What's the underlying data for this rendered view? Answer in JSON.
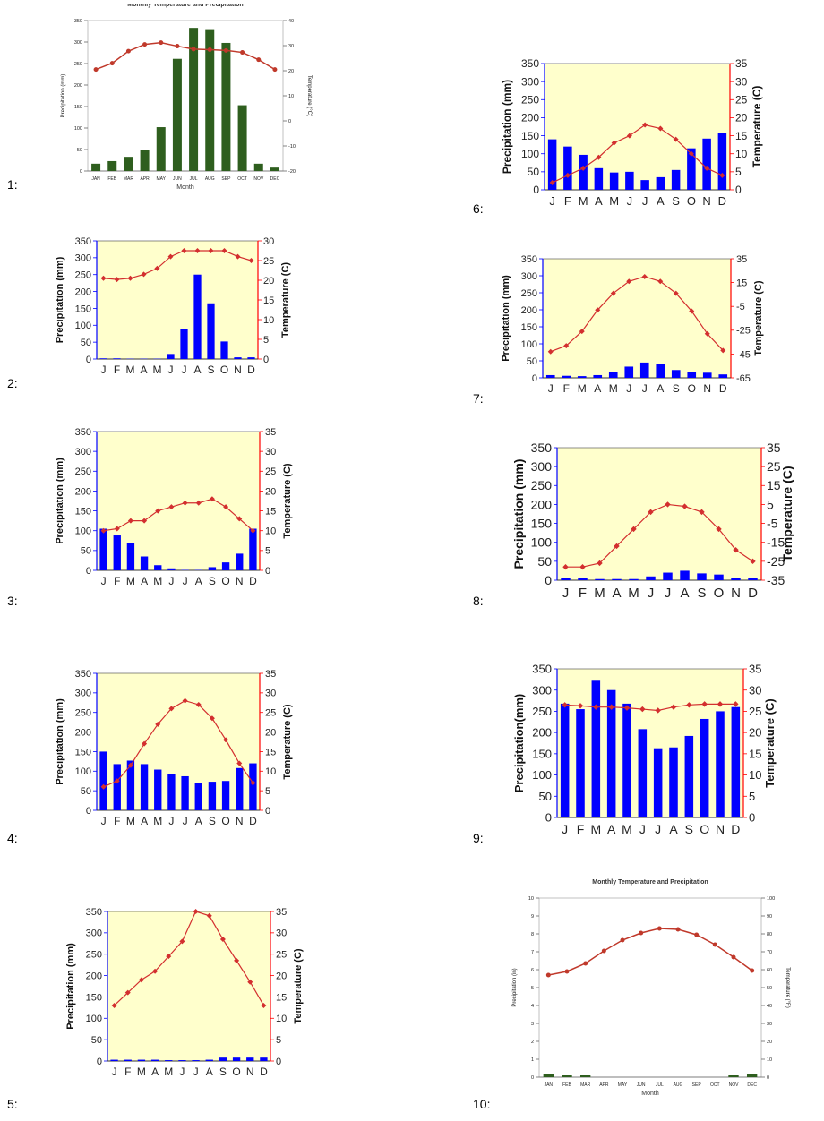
{
  "panel_labels": [
    "1:",
    "2:",
    "3:",
    "4:",
    "5:",
    "6:",
    "7:",
    "8:",
    "9:",
    "10:"
  ],
  "colors": {
    "green_bar": "#2e5e1e",
    "blue_bar": "#0000ff",
    "red_line": "#c0392b",
    "temp_marker": "#d32f2f",
    "yellow_bg": "#ffffcc",
    "blue_axis": "#0000ff",
    "red_axis": "#ff0000"
  },
  "chart_data": [
    {
      "type": "bar",
      "style": "climate-green",
      "title": "Monthly Temperature and Precipitation",
      "xlabel": "Month",
      "ylabel": "Precipitation (mm)",
      "y2label": "Temperature (°C)",
      "categories": [
        "JAN",
        "FEB",
        "MAR",
        "APR",
        "MAY",
        "JUN",
        "JUL",
        "AUG",
        "SEP",
        "OCT",
        "NOV",
        "DEC"
      ],
      "ylim": [
        0,
        350
      ],
      "yticks": [
        0,
        50,
        100,
        150,
        200,
        250,
        300,
        350
      ],
      "y2lim": [
        -20,
        40
      ],
      "y2ticks": [
        -20,
        -10,
        0,
        10,
        20,
        30,
        40
      ],
      "series": [
        {
          "values": [
            17,
            23,
            33,
            48,
            102,
            261,
            333,
            330,
            298,
            153,
            17,
            8
          ]
        },
        {
          "axis": "right",
          "values": [
            20.5,
            23,
            27.8,
            30.5,
            31.2,
            29.8,
            28.6,
            28.4,
            28.1,
            27.3,
            24.4,
            20.5
          ]
        }
      ]
    },
    {
      "type": "bar",
      "style": "climate-yellow",
      "ylabel": "Precipitation (mm)",
      "y2label": "Temperature (C)",
      "categories": [
        "J",
        "F",
        "M",
        "A",
        "M",
        "J",
        "J",
        "A",
        "S",
        "O",
        "N",
        "D"
      ],
      "ylim": [
        0,
        350
      ],
      "yticks": [
        0,
        50,
        100,
        150,
        200,
        250,
        300,
        350
      ],
      "y2lim": [
        0,
        30
      ],
      "y2ticks": [
        0,
        5,
        10,
        15,
        20,
        25,
        30
      ],
      "series": [
        {
          "values": [
            2,
            2,
            1,
            1,
            1,
            15,
            90,
            250,
            165,
            52,
            5,
            5
          ]
        },
        {
          "axis": "right",
          "values": [
            20.5,
            20.2,
            20.5,
            21.5,
            23,
            26,
            27.5,
            27.5,
            27.5,
            27.5,
            26,
            25
          ]
        }
      ]
    },
    {
      "type": "bar",
      "style": "climate-yellow",
      "ylabel": "Precipitation (mm)",
      "y2label": "Temperature (C)",
      "categories": [
        "J",
        "F",
        "M",
        "A",
        "M",
        "J",
        "J",
        "A",
        "S",
        "O",
        "N",
        "D"
      ],
      "ylim": [
        0,
        350
      ],
      "yticks": [
        0,
        50,
        100,
        150,
        200,
        250,
        300,
        350
      ],
      "y2lim": [
        0,
        35
      ],
      "y2ticks": [
        0,
        5,
        10,
        15,
        20,
        25,
        30,
        35
      ],
      "series": [
        {
          "values": [
            105,
            88,
            70,
            35,
            13,
            5,
            1,
            1,
            8,
            20,
            42,
            105
          ]
        },
        {
          "axis": "right",
          "values": [
            10,
            10.5,
            12.5,
            12.5,
            15,
            16,
            17,
            17,
            18,
            16,
            13,
            10
          ]
        }
      ]
    },
    {
      "type": "bar",
      "style": "climate-yellow",
      "ylabel": "Precipitation (mm)",
      "y2label": "Temperature (C)",
      "categories": [
        "J",
        "F",
        "M",
        "A",
        "M",
        "J",
        "J",
        "A",
        "S",
        "O",
        "N",
        "D"
      ],
      "ylim": [
        0,
        350
      ],
      "yticks": [
        0,
        50,
        100,
        150,
        200,
        250,
        300,
        350
      ],
      "y2lim": [
        0,
        35
      ],
      "y2ticks": [
        0,
        5,
        10,
        15,
        20,
        25,
        30,
        35
      ],
      "series": [
        {
          "values": [
            150,
            118,
            127,
            118,
            104,
            93,
            87,
            70,
            73,
            75,
            108,
            120
          ]
        },
        {
          "axis": "right",
          "values": [
            6,
            7.5,
            11.5,
            17,
            22,
            26,
            28,
            27,
            23.5,
            18,
            12,
            7
          ]
        }
      ]
    },
    {
      "type": "bar",
      "style": "climate-yellow",
      "ylabel": "Precipitation (mm)",
      "y2label": "Temperature (C)",
      "categories": [
        "J",
        "F",
        "M",
        "A",
        "M",
        "J",
        "J",
        "A",
        "S",
        "O",
        "N",
        "D"
      ],
      "ylim": [
        0,
        350
      ],
      "yticks": [
        0,
        50,
        100,
        150,
        200,
        250,
        300,
        350
      ],
      "y2lim": [
        0,
        35
      ],
      "y2ticks": [
        0,
        5,
        10,
        15,
        20,
        25,
        30,
        35
      ],
      "series": [
        {
          "values": [
            3,
            3,
            3,
            3,
            2,
            2,
            2,
            3,
            8,
            8,
            8,
            8
          ]
        },
        {
          "axis": "right",
          "values": [
            13,
            16,
            19,
            21,
            24.5,
            28,
            35,
            34,
            28.5,
            23.5,
            18.5,
            13
          ]
        }
      ]
    },
    {
      "type": "bar",
      "style": "climate-yellow",
      "ylabel": "Precipitation (mm)",
      "y2label": "Temperature (C)",
      "categories": [
        "J",
        "F",
        "M",
        "A",
        "M",
        "J",
        "J",
        "A",
        "S",
        "O",
        "N",
        "D"
      ],
      "ylim": [
        0,
        350
      ],
      "yticks": [
        0,
        50,
        100,
        150,
        200,
        250,
        300,
        350
      ],
      "y2lim": [
        0,
        35
      ],
      "y2ticks": [
        0,
        5,
        10,
        15,
        20,
        25,
        30,
        35
      ],
      "series": [
        {
          "values": [
            140,
            120,
            97,
            60,
            48,
            50,
            27,
            35,
            55,
            115,
            142,
            157
          ]
        },
        {
          "axis": "right",
          "values": [
            2,
            4,
            6,
            9,
            13,
            15,
            18,
            17,
            14,
            10,
            6,
            4
          ]
        }
      ]
    },
    {
      "type": "bar",
      "style": "climate-yellow",
      "ylabel": "Precipitation (mm)",
      "y2label": "Temperature (C)",
      "categories": [
        "J",
        "F",
        "M",
        "A",
        "M",
        "J",
        "J",
        "A",
        "S",
        "O",
        "N",
        "D"
      ],
      "ylim": [
        0,
        350
      ],
      "yticks": [
        0,
        50,
        100,
        150,
        200,
        250,
        300,
        350
      ],
      "y2lim": [
        -65,
        35
      ],
      "y2ticks": [
        -65,
        -45,
        -25,
        -5,
        15,
        35
      ],
      "series": [
        {
          "values": [
            8,
            6,
            5,
            8,
            18,
            33,
            45,
            40,
            23,
            18,
            15,
            10
          ]
        },
        {
          "axis": "right",
          "values": [
            -43,
            -38,
            -26,
            -8,
            6,
            16,
            20,
            16,
            6,
            -9,
            -28,
            -42
          ]
        }
      ]
    },
    {
      "type": "bar",
      "style": "climate-yellow",
      "ylabel": "Precipitation (mm)",
      "y2label": "Temperature (C)",
      "categories": [
        "J",
        "F",
        "M",
        "A",
        "M",
        "J",
        "J",
        "A",
        "S",
        "O",
        "N",
        "D"
      ],
      "ylim": [
        0,
        350
      ],
      "yticks": [
        0,
        50,
        100,
        150,
        200,
        250,
        300,
        350
      ],
      "y2lim": [
        -35,
        35
      ],
      "y2ticks": [
        -35,
        -25,
        -15,
        -5,
        5,
        15,
        25,
        35
      ],
      "series": [
        {
          "values": [
            5,
            5,
            3,
            3,
            3,
            10,
            20,
            25,
            18,
            15,
            5,
            5
          ]
        },
        {
          "axis": "right",
          "values": [
            -28,
            -28,
            -26,
            -17,
            -8,
            1,
            5,
            4,
            1,
            -8,
            -19,
            -25
          ]
        }
      ]
    },
    {
      "type": "bar",
      "style": "climate-yellow",
      "ylabel": "Precipitation(mm)",
      "y2label": "Temperature (C)",
      "categories": [
        "J",
        "F",
        "M",
        "A",
        "M",
        "J",
        "J",
        "A",
        "S",
        "O",
        "N",
        "D"
      ],
      "ylim": [
        0,
        350
      ],
      "yticks": [
        0,
        50,
        100,
        150,
        200,
        250,
        300,
        350
      ],
      "y2lim": [
        0,
        35
      ],
      "y2ticks": [
        0,
        5,
        10,
        15,
        20,
        25,
        30,
        35
      ],
      "series": [
        {
          "values": [
            268,
            255,
            322,
            300,
            268,
            208,
            163,
            165,
            192,
            232,
            250,
            260
          ]
        },
        {
          "axis": "right",
          "values": [
            26.5,
            26.3,
            26,
            26,
            25.8,
            25.5,
            25.2,
            26,
            26.5,
            26.7,
            26.7,
            26.7
          ]
        }
      ]
    },
    {
      "type": "bar",
      "style": "climate-green",
      "title": "Monthly Temperature and Precipitation",
      "xlabel": "Month",
      "ylabel": "Precipitation (in)",
      "y2label": "Temperature (°F)",
      "categories": [
        "JAN",
        "FEB",
        "MAR",
        "APR",
        "MAY",
        "JUN",
        "JUL",
        "AUG",
        "SEP",
        "OCT",
        "NOV",
        "DEC"
      ],
      "ylim": [
        0,
        10
      ],
      "yticks": [
        0,
        1,
        2,
        3,
        4,
        5,
        6,
        7,
        8,
        9,
        10
      ],
      "y2lim": [
        0,
        100
      ],
      "y2ticks": [
        0,
        10,
        20,
        30,
        40,
        50,
        60,
        70,
        80,
        90,
        100
      ],
      "series": [
        {
          "values": [
            0.2,
            0.1,
            0.1,
            0,
            0,
            0,
            0,
            0,
            0,
            0,
            0.1,
            0.2
          ]
        },
        {
          "axis": "right",
          "values": [
            57,
            59,
            63.5,
            70.5,
            76.5,
            80.5,
            83,
            82.5,
            79.5,
            74,
            67,
            59.5
          ]
        }
      ]
    }
  ]
}
